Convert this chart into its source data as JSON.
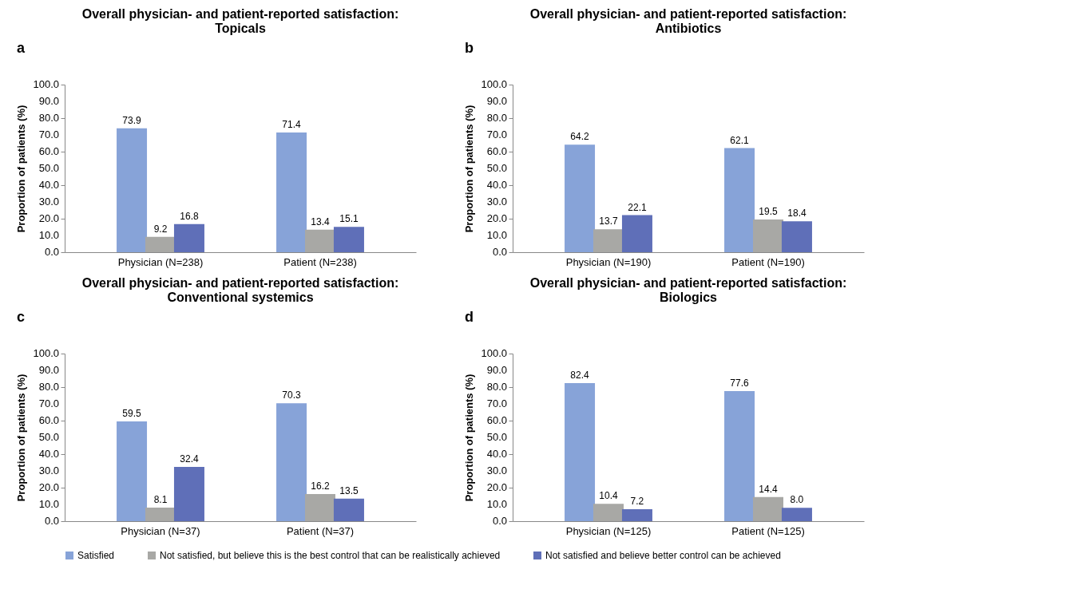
{
  "chart_data": [
    {
      "type": "bar",
      "annotations": [
        "a"
      ],
      "title": "Overall physician- and patient-reported satisfaction:\nTopicals",
      "ylabel": "Proportion of patients (%)",
      "categories": [
        "Physician (N=238)",
        "Patient (N=238)"
      ],
      "series": [
        {
          "name": "Satisfied",
          "color": "#87a3d8",
          "values": [
            73.9,
            71.4
          ],
          "value_labels": [
            "73.9",
            "71.4"
          ]
        },
        {
          "name": "Not satisfied, but believe this is the best control that can be realistically achieved",
          "color": "#a8a8a5",
          "values": [
            9.2,
            13.4
          ],
          "value_labels": [
            "9.2",
            "13.4"
          ]
        },
        {
          "name": "Not satisfied and believe better control can be achieved",
          "color": "#5f6fb8",
          "values": [
            16.8,
            15.1
          ],
          "value_labels": [
            "16.8",
            "15.1"
          ]
        }
      ],
      "ylim": [
        0,
        100
      ],
      "yticks": [
        {
          "value": 0,
          "label": "0.0"
        },
        {
          "value": 10,
          "label": "10.0"
        },
        {
          "value": 20,
          "label": "20.0"
        },
        {
          "value": 30,
          "label": "30.0"
        },
        {
          "value": 40,
          "label": "40.0"
        },
        {
          "value": 50,
          "label": "50.0"
        },
        {
          "value": 60,
          "label": "60.0"
        },
        {
          "value": 70,
          "label": "70.0"
        },
        {
          "value": 80,
          "label": "80.0"
        },
        {
          "value": 90,
          "label": "90.0"
        },
        {
          "value": 100,
          "label": "100.0"
        }
      ],
      "grid": false,
      "legend": "bottom"
    },
    {
      "type": "bar",
      "annotations": [
        "b"
      ],
      "title": "Overall physician- and patient-reported satisfaction:\nAntibiotics",
      "ylabel": "Proportion of patients (%)",
      "categories": [
        "Physician (N=190)",
        "Patient (N=190)"
      ],
      "series": [
        {
          "name": "Satisfied",
          "color": "#87a3d8",
          "values": [
            64.2,
            62.1
          ],
          "value_labels": [
            "64.2",
            "62.1"
          ]
        },
        {
          "name": "Not satisfied, but believe this is the best control that can be realistically achieved",
          "color": "#a8a8a5",
          "values": [
            13.7,
            19.5
          ],
          "value_labels": [
            "13.7",
            "19.5"
          ]
        },
        {
          "name": "Not satisfied and believe better control can be achieved",
          "color": "#5f6fb8",
          "values": [
            22.1,
            18.4
          ],
          "value_labels": [
            "22.1",
            "18.4"
          ]
        }
      ],
      "ylim": [
        0,
        100
      ],
      "yticks": [
        {
          "value": 0,
          "label": "0.0"
        },
        {
          "value": 10,
          "label": "10.0"
        },
        {
          "value": 20,
          "label": "20.0"
        },
        {
          "value": 30,
          "label": "30.0"
        },
        {
          "value": 40,
          "label": "40.0"
        },
        {
          "value": 50,
          "label": "50.0"
        },
        {
          "value": 60,
          "label": "60.0"
        },
        {
          "value": 70,
          "label": "70.0"
        },
        {
          "value": 80,
          "label": "80.0"
        },
        {
          "value": 90,
          "label": "90.0"
        },
        {
          "value": 100,
          "label": "100.0"
        }
      ],
      "grid": false,
      "legend": "bottom"
    },
    {
      "type": "bar",
      "annotations": [
        "c"
      ],
      "title": "Overall physician- and patient-reported satisfaction:\nConventional systemics",
      "ylabel": "Proportion of patients (%)",
      "categories": [
        "Physician (N=37)",
        "Patient (N=37)"
      ],
      "series": [
        {
          "name": "Satisfied",
          "color": "#87a3d8",
          "values": [
            59.5,
            70.3
          ],
          "value_labels": [
            "59.5",
            "70.3"
          ]
        },
        {
          "name": "Not satisfied, but believe this is the best control that can be realistically achieved",
          "color": "#a8a8a5",
          "values": [
            8.1,
            16.2
          ],
          "value_labels": [
            "8.1",
            "16.2"
          ]
        },
        {
          "name": "Not satisfied and believe better control can be achieved",
          "color": "#5f6fb8",
          "values": [
            32.4,
            13.5
          ],
          "value_labels": [
            "32.4",
            "13.5"
          ]
        }
      ],
      "ylim": [
        0,
        100
      ],
      "yticks": [
        {
          "value": 0,
          "label": "0.0"
        },
        {
          "value": 10,
          "label": "10.0"
        },
        {
          "value": 20,
          "label": "20.0"
        },
        {
          "value": 30,
          "label": "30.0"
        },
        {
          "value": 40,
          "label": "40.0"
        },
        {
          "value": 50,
          "label": "50.0"
        },
        {
          "value": 60,
          "label": "60.0"
        },
        {
          "value": 70,
          "label": "70.0"
        },
        {
          "value": 80,
          "label": "80.0"
        },
        {
          "value": 90,
          "label": "90.0"
        },
        {
          "value": 100,
          "label": "100.0"
        }
      ],
      "grid": false,
      "legend": "bottom"
    },
    {
      "type": "bar",
      "annotations": [
        "d"
      ],
      "title": "Overall physician- and patient-reported satisfaction:\nBiologics",
      "ylabel": "Proportion of patients (%)",
      "categories": [
        "Physician (N=125)",
        "Patient (N=125)"
      ],
      "series": [
        {
          "name": "Satisfied",
          "color": "#87a3d8",
          "values": [
            82.4,
            77.6
          ],
          "value_labels": [
            "82.4",
            "77.6"
          ]
        },
        {
          "name": "Not satisfied, but believe this is the best control that can be realistically achieved",
          "color": "#a8a8a5",
          "values": [
            10.4,
            14.4
          ],
          "value_labels": [
            "10.4",
            "14.4"
          ]
        },
        {
          "name": "Not satisfied and believe better control can be achieved",
          "color": "#5f6fb8",
          "values": [
            7.2,
            8.0
          ],
          "value_labels": [
            "7.2",
            "8.0"
          ]
        }
      ],
      "ylim": [
        0,
        100
      ],
      "yticks": [
        {
          "value": 0,
          "label": "0.0"
        },
        {
          "value": 10,
          "label": "10.0"
        },
        {
          "value": 20,
          "label": "20.0"
        },
        {
          "value": 30,
          "label": "30.0"
        },
        {
          "value": 40,
          "label": "40.0"
        },
        {
          "value": 50,
          "label": "50.0"
        },
        {
          "value": 60,
          "label": "60.0"
        },
        {
          "value": 70,
          "label": "70.0"
        },
        {
          "value": 80,
          "label": "80.0"
        },
        {
          "value": 90,
          "label": "90.0"
        },
        {
          "value": 100,
          "label": "100.0"
        }
      ],
      "grid": false,
      "legend": "bottom"
    }
  ]
}
